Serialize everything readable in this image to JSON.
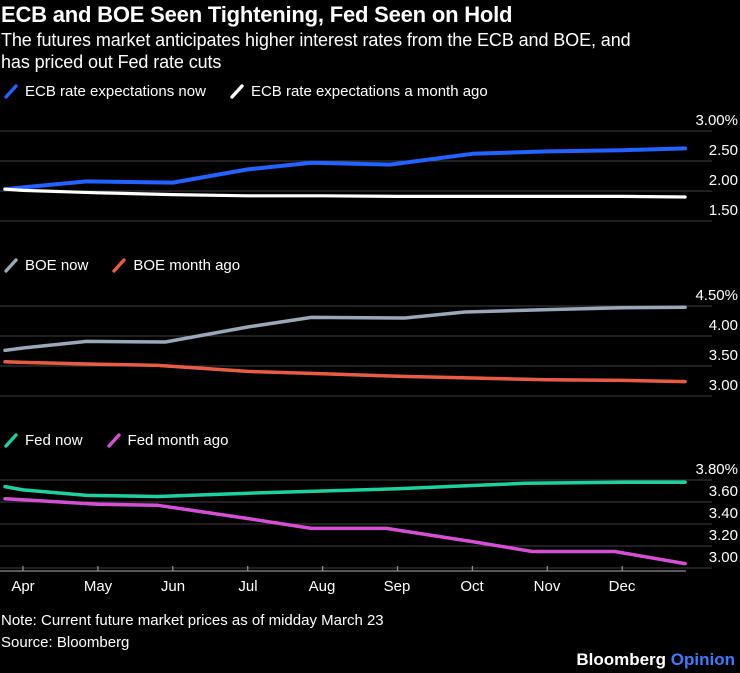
{
  "header": {
    "title": "ECB and BOE Seen Tightening, Fed Seen on Hold",
    "subtitle_line1": "The futures market anticipates higher interest rates from the ECB and BOE, and",
    "subtitle_line2": "has priced out Fed rate cuts"
  },
  "x_axis": {
    "labels": [
      "Apr",
      "May",
      "Jun",
      "Jul",
      "Aug",
      "Sep",
      "Oct",
      "Nov",
      "Dec"
    ]
  },
  "chart_data": [
    {
      "type": "line",
      "panel": "ECB rate expectations",
      "unit": "%",
      "ylim": [
        1.5,
        3.0
      ],
      "y_ticks": [
        {
          "value": 3.0,
          "label": "3.00%"
        },
        {
          "value": 2.5,
          "label": "2.50"
        },
        {
          "value": 2.0,
          "label": "2.00"
        },
        {
          "value": 1.5,
          "label": "1.50"
        }
      ],
      "series": [
        {
          "name": "ECB rate expectations now",
          "color": "#2262ff",
          "points": [
            [
              -0.24,
              2.03
            ],
            [
              0,
              2.06
            ],
            [
              0.85,
              2.16
            ],
            [
              2,
              2.14
            ],
            [
              3,
              2.36
            ],
            [
              3.85,
              2.47
            ],
            [
              4.9,
              2.44
            ],
            [
              6,
              2.62
            ],
            [
              7,
              2.66
            ],
            [
              8,
              2.68
            ],
            [
              8.84,
              2.71
            ]
          ]
        },
        {
          "name": "ECB rate expectations a month ago",
          "color": "#ffffff",
          "points": [
            [
              -0.24,
              2.03
            ],
            [
              0,
              2.01
            ],
            [
              1,
              1.97
            ],
            [
              2,
              1.94
            ],
            [
              3,
              1.92
            ],
            [
              4,
              1.92
            ],
            [
              5,
              1.91
            ],
            [
              6,
              1.91
            ],
            [
              7,
              1.91
            ],
            [
              8,
              1.91
            ],
            [
              8.84,
              1.9
            ]
          ]
        }
      ]
    },
    {
      "type": "line",
      "panel": "BOE rate expectations",
      "unit": "%",
      "ylim": [
        3.0,
        4.5
      ],
      "y_ticks": [
        {
          "value": 4.5,
          "label": "4.50%"
        },
        {
          "value": 4.0,
          "label": "4.00"
        },
        {
          "value": 3.5,
          "label": "3.50"
        },
        {
          "value": 3.0,
          "label": "3.00"
        }
      ],
      "series": [
        {
          "name": "BOE now",
          "color": "#9aa6ba",
          "points": [
            [
              -0.24,
              3.76
            ],
            [
              0,
              3.8
            ],
            [
              0.85,
              3.91
            ],
            [
              1.9,
              3.9
            ],
            [
              3,
              4.15
            ],
            [
              3.85,
              4.31
            ],
            [
              5.1,
              4.3
            ],
            [
              5.9,
              4.4
            ],
            [
              7,
              4.44
            ],
            [
              8,
              4.47
            ],
            [
              8.84,
              4.48
            ]
          ]
        },
        {
          "name": "BOE month ago",
          "color": "#e85c45",
          "points": [
            [
              -0.24,
              3.57
            ],
            [
              0,
              3.56
            ],
            [
              1,
              3.53
            ],
            [
              1.8,
              3.51
            ],
            [
              3,
              3.41
            ],
            [
              4,
              3.37
            ],
            [
              5,
              3.33
            ],
            [
              6,
              3.3
            ],
            [
              7,
              3.27
            ],
            [
              8,
              3.26
            ],
            [
              8.84,
              3.24
            ]
          ]
        }
      ]
    },
    {
      "type": "line",
      "panel": "Fed rate expectations",
      "unit": "%",
      "ylim": [
        3.0,
        3.8
      ],
      "x_axis_line": true,
      "y_ticks": [
        {
          "value": 3.8,
          "label": "3.80%"
        },
        {
          "value": 3.6,
          "label": "3.60"
        },
        {
          "value": 3.4,
          "label": "3.40"
        },
        {
          "value": 3.2,
          "label": "3.20"
        },
        {
          "value": 3.0,
          "label": "3.00"
        }
      ],
      "series": [
        {
          "name": "Fed now",
          "color": "#1ecfa0",
          "points": [
            [
              -0.24,
              3.74
            ],
            [
              0,
              3.71
            ],
            [
              0.85,
              3.66
            ],
            [
              1.8,
              3.65
            ],
            [
              3,
              3.68
            ],
            [
              4,
              3.7
            ],
            [
              5,
              3.72
            ],
            [
              6,
              3.75
            ],
            [
              6.7,
              3.77
            ],
            [
              8,
              3.78
            ],
            [
              8.84,
              3.78
            ]
          ]
        },
        {
          "name": "Fed month ago",
          "color": "#d44fd4",
          "points": [
            [
              -0.24,
              3.63
            ],
            [
              0,
              3.62
            ],
            [
              1,
              3.58
            ],
            [
              1.8,
              3.57
            ],
            [
              3,
              3.45
            ],
            [
              3.85,
              3.36
            ],
            [
              4.85,
              3.36
            ],
            [
              6,
              3.24
            ],
            [
              6.8,
              3.15
            ],
            [
              7.9,
              3.15
            ],
            [
              8.84,
              3.04
            ]
          ]
        }
      ]
    }
  ],
  "footer": {
    "note": "Note: Current future market prices as of midday March 23",
    "source": "Source: Bloomberg",
    "brand": "Bloomberg",
    "brand_suffix": "Opinion"
  },
  "colors": {
    "background": "#000000",
    "grid": "#404040",
    "axis": "#8c8c8c",
    "text": "#ffffff",
    "opinion_blue": "#3b7bff"
  }
}
